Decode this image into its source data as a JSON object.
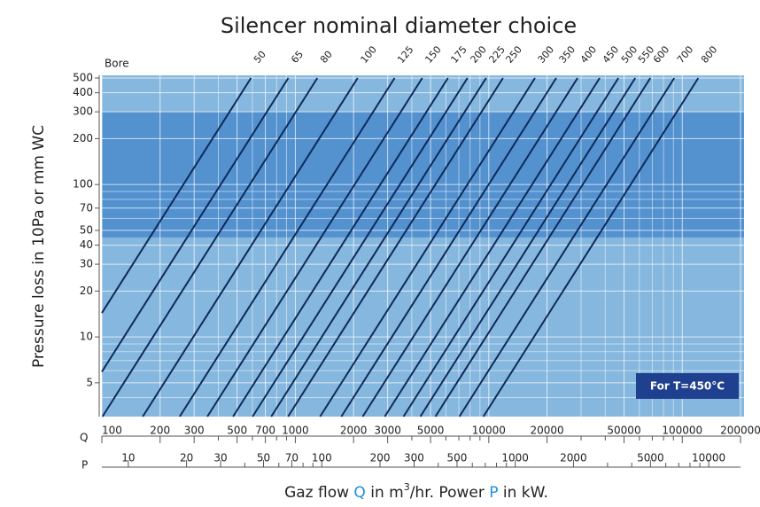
{
  "chart_data": {
    "type": "nomogram",
    "title": "Silencer nominal diameter choice",
    "ylabel": "Pressure loss in 10Pa or mm WC",
    "xlabel": [
      "Gaz flow ",
      "Q",
      " in m",
      "3",
      "/hr. Power ",
      "P",
      " in kW."
    ],
    "series_title": "Bore",
    "x_axis_name": "Q",
    "x2_axis_name": "P",
    "note": "For T=450°C",
    "log_x": true,
    "log_y": true,
    "grid": true,
    "xlim": [
      100,
      200000
    ],
    "x2lim": [
      7.3,
      14600
    ],
    "ylim": [
      3,
      500
    ],
    "xticks": [
      100,
      200,
      300,
      500,
      700,
      1000,
      2000,
      3000,
      5000,
      10000,
      20000,
      50000,
      100000,
      200000
    ],
    "xminor": [
      400,
      600,
      800,
      900,
      4000,
      6000,
      7000,
      8000,
      9000,
      30000,
      40000,
      60000,
      70000,
      80000,
      90000
    ],
    "x2ticks": [
      10,
      20,
      30,
      50,
      70,
      100,
      200,
      300,
      500,
      1000,
      2000,
      5000,
      10000
    ],
    "x2minor": [
      40,
      60,
      80,
      90,
      400,
      600,
      700,
      800,
      900,
      3000,
      4000,
      6000,
      7000,
      8000,
      9000
    ],
    "yticks": [
      5,
      10,
      20,
      30,
      40,
      50,
      70,
      100,
      200,
      300,
      400,
      500
    ],
    "yminor": [
      4,
      6,
      7,
      8,
      9,
      60,
      80,
      90
    ],
    "band": [
      45,
      300
    ],
    "slope": 2,
    "line_color": "#0e2a5c",
    "bg_color": "#86b7de",
    "band_color": "#4a8bcc",
    "lines": [
      {
        "name": "50",
        "q_top": 590
      },
      {
        "name": "65",
        "q_top": 920
      },
      {
        "name": "80",
        "q_top": 1300
      },
      {
        "name": "100",
        "q_top": 2100
      },
      {
        "name": "125",
        "q_top": 3260
      },
      {
        "name": "150",
        "q_top": 4530
      },
      {
        "name": "175",
        "q_top": 6150
      },
      {
        "name": "200",
        "q_top": 7760
      },
      {
        "name": "225",
        "q_top": 9690
      },
      {
        "name": "250",
        "q_top": 11840
      },
      {
        "name": "300",
        "q_top": 17330
      },
      {
        "name": "350",
        "q_top": 22320
      },
      {
        "name": "400",
        "q_top": 28770
      },
      {
        "name": "450",
        "q_top": 37430
      },
      {
        "name": "500",
        "q_top": 46770
      },
      {
        "name": "550",
        "q_top": 57150
      },
      {
        "name": "600",
        "q_top": 68390
      },
      {
        "name": "700",
        "q_top": 90930
      },
      {
        "name": "800",
        "q_top": 121000
      }
    ]
  }
}
